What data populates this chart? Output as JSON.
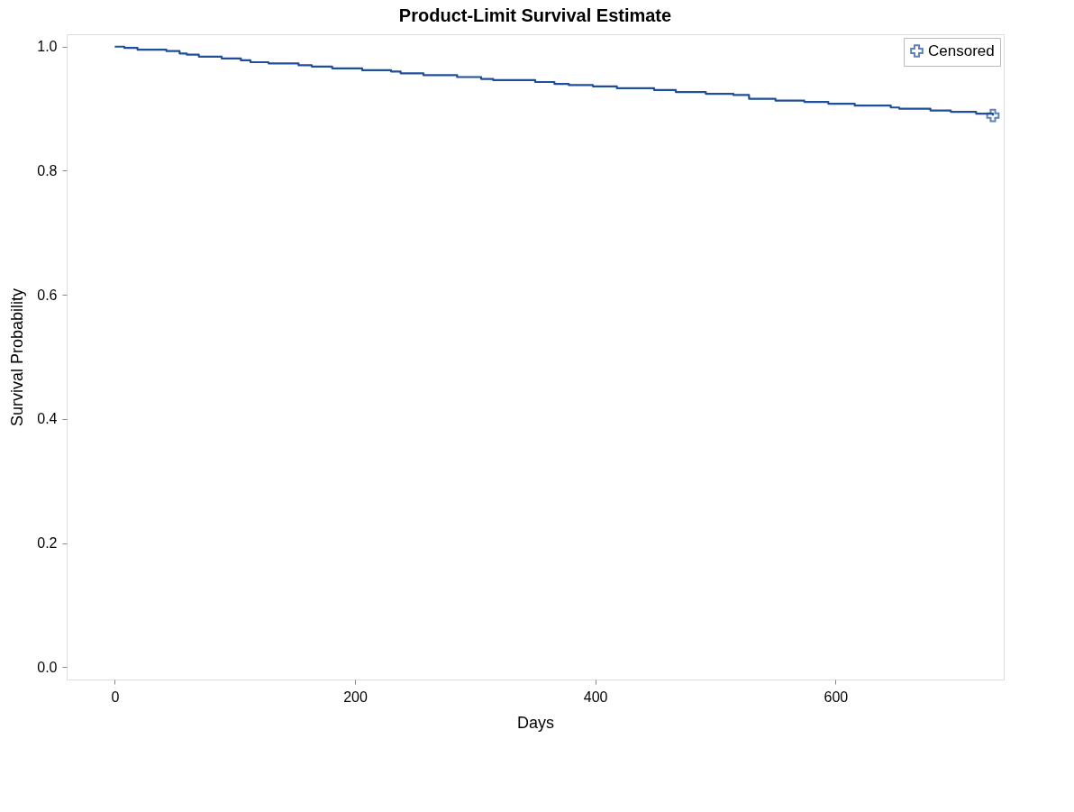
{
  "chart_data": {
    "type": "line",
    "title": "Product-Limit Survival Estimate",
    "xlabel": "Days",
    "ylabel": "Survival Probability",
    "xlim": [
      -40,
      740
    ],
    "xticks": [
      0,
      200,
      400,
      600
    ],
    "ylim": [
      -0.02,
      1.02
    ],
    "yticks": [
      {
        "value": 0,
        "label": "0.0"
      },
      {
        "value": 0.2,
        "label": "0.2"
      },
      {
        "value": 0.4,
        "label": "0.4"
      },
      {
        "value": 0.6,
        "label": "0.6"
      },
      {
        "value": 0.8,
        "label": "0.8"
      },
      {
        "value": 1,
        "label": "1.0"
      }
    ],
    "grid": false,
    "legend": "top right",
    "series": [
      {
        "type": "step",
        "color": "#1f4e9b",
        "marker": "none",
        "x": [
          0,
          8,
          19,
          43,
          54,
          60,
          70,
          89,
          105,
          113,
          128,
          153,
          164,
          181,
          206,
          230,
          238,
          257,
          285,
          305,
          315,
          350,
          366,
          378,
          398,
          418,
          449,
          467,
          492,
          515,
          528,
          550,
          574,
          594,
          616,
          646,
          653,
          679,
          696,
          717,
          731
        ],
        "values": [
          1.0,
          0.998,
          0.995,
          0.993,
          0.989,
          0.987,
          0.984,
          0.981,
          0.978,
          0.975,
          0.973,
          0.97,
          0.968,
          0.965,
          0.962,
          0.96,
          0.957,
          0.954,
          0.951,
          0.948,
          0.946,
          0.943,
          0.94,
          0.938,
          0.936,
          0.933,
          0.93,
          0.927,
          0.924,
          0.922,
          0.916,
          0.913,
          0.911,
          0.908,
          0.905,
          0.902,
          0.9,
          0.897,
          0.895,
          0.892,
          0.889
        ]
      },
      {
        "type": "scatter",
        "name": "Censored",
        "color": "#1f4e9b",
        "marker": "cross",
        "x": [
          731
        ],
        "values": [
          0.889
        ]
      }
    ]
  }
}
